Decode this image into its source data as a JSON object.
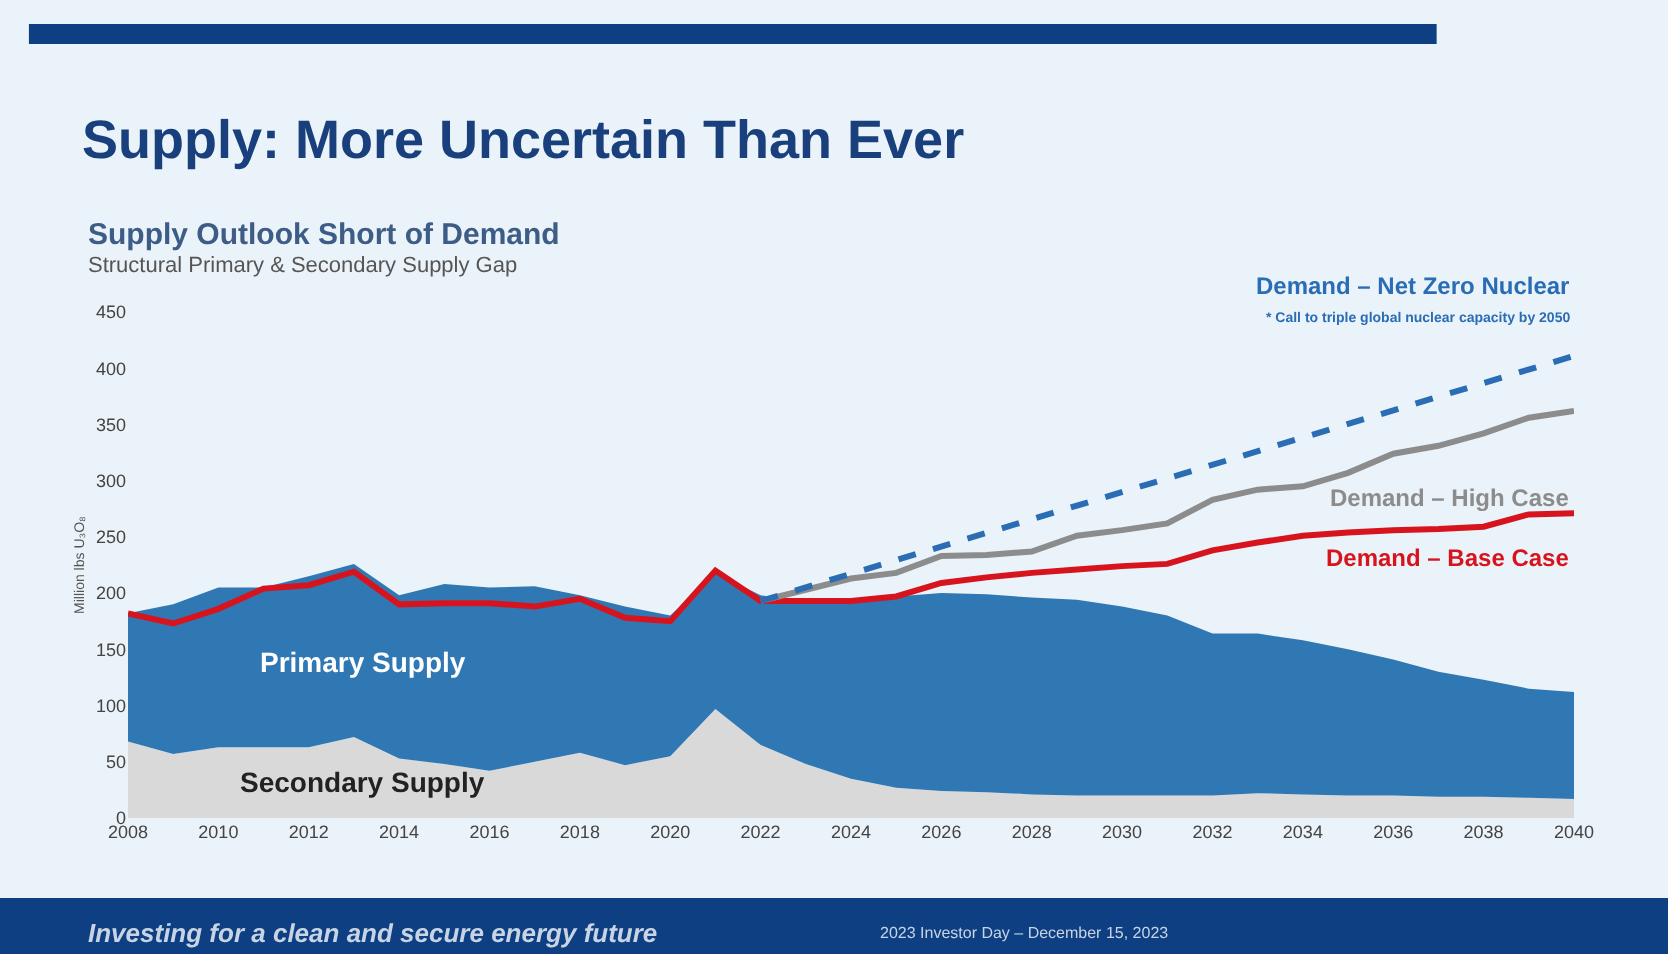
{
  "chart_data": {
    "type": "area",
    "title": "Supply: More Uncertain Than Ever",
    "subtitle": "Supply Outlook Short of Demand",
    "ylabel": "Million lbs U₃O₈",
    "annotations": [
      "Structural Primary & Secondary Supply Gap",
      "* Call to triple global nuclear capacity by 2050",
      "Investing for a clean and secure energy future",
      "2023 Investor Day – December 15, 2023"
    ],
    "x": [
      2008,
      2009,
      2010,
      2011,
      2012,
      2013,
      2014,
      2015,
      2016,
      2017,
      2018,
      2019,
      2020,
      2021,
      2022,
      2023,
      2024,
      2025,
      2026,
      2027,
      2028,
      2029,
      2030,
      2031,
      2032,
      2033,
      2034,
      2035,
      2036,
      2037,
      2038,
      2039,
      2040
    ],
    "stacked": true,
    "series": [
      {
        "name": "Secondary Supply",
        "color": "#d9d9d9",
        "values": [
          68,
          57,
          63,
          63,
          63,
          72,
          53,
          48,
          42,
          50,
          58,
          47,
          55,
          97,
          65,
          48,
          35,
          27,
          24,
          23,
          21,
          20,
          20,
          20,
          20,
          22,
          21,
          20,
          20,
          19,
          19,
          18,
          17
        ]
      },
      {
        "name": "Primary Supply",
        "color": "#2f78b4",
        "values": [
          114,
          133,
          142,
          142,
          152,
          154,
          145,
          160,
          163,
          156,
          140,
          141,
          125,
          121,
          133,
          145,
          159,
          170,
          176,
          176,
          175,
          174,
          168,
          160,
          144,
          142,
          137,
          130,
          121,
          111,
          104,
          97,
          95
        ]
      },
      {
        "name": "Demand – Base Case",
        "type": "line",
        "color": "#d7141e",
        "line_style": "solid",
        "values": [
          182,
          173,
          186,
          204,
          207,
          219,
          190,
          191,
          191,
          188,
          195,
          178,
          175,
          220,
          193,
          193,
          193,
          197,
          209,
          214,
          218,
          221,
          224,
          226,
          238,
          245,
          251,
          254,
          256,
          257,
          259,
          270,
          271
        ]
      },
      {
        "name": "Demand – High Case",
        "type": "line",
        "color": "#8c8c8c",
        "line_style": "solid",
        "x": [
          2022,
          2023,
          2024,
          2025,
          2026,
          2027,
          2028,
          2029,
          2030,
          2031,
          2032,
          2033,
          2034,
          2035,
          2036,
          2037,
          2038,
          2039,
          2040
        ],
        "values": [
          193,
          203,
          213,
          218,
          233,
          234,
          237,
          251,
          256,
          262,
          283,
          292,
          295,
          307,
          324,
          331,
          342,
          356,
          362
        ]
      },
      {
        "name": "Demand – Net Zero Nuclear",
        "type": "line",
        "color": "#2a6db5",
        "line_style": "dashed",
        "x": [
          2022,
          2040
        ],
        "values": [
          193,
          411
        ]
      }
    ],
    "xlim": [
      2008,
      2040
    ],
    "xticks": [
      2008,
      2010,
      2012,
      2014,
      2016,
      2018,
      2020,
      2022,
      2024,
      2026,
      2028,
      2030,
      2032,
      2034,
      2036,
      2038,
      2040
    ],
    "ylim": [
      0,
      450
    ],
    "yticks": [
      0,
      50,
      100,
      150,
      200,
      250,
      300,
      350,
      400,
      450
    ],
    "grid": false,
    "legend": false,
    "marker": "none"
  }
}
